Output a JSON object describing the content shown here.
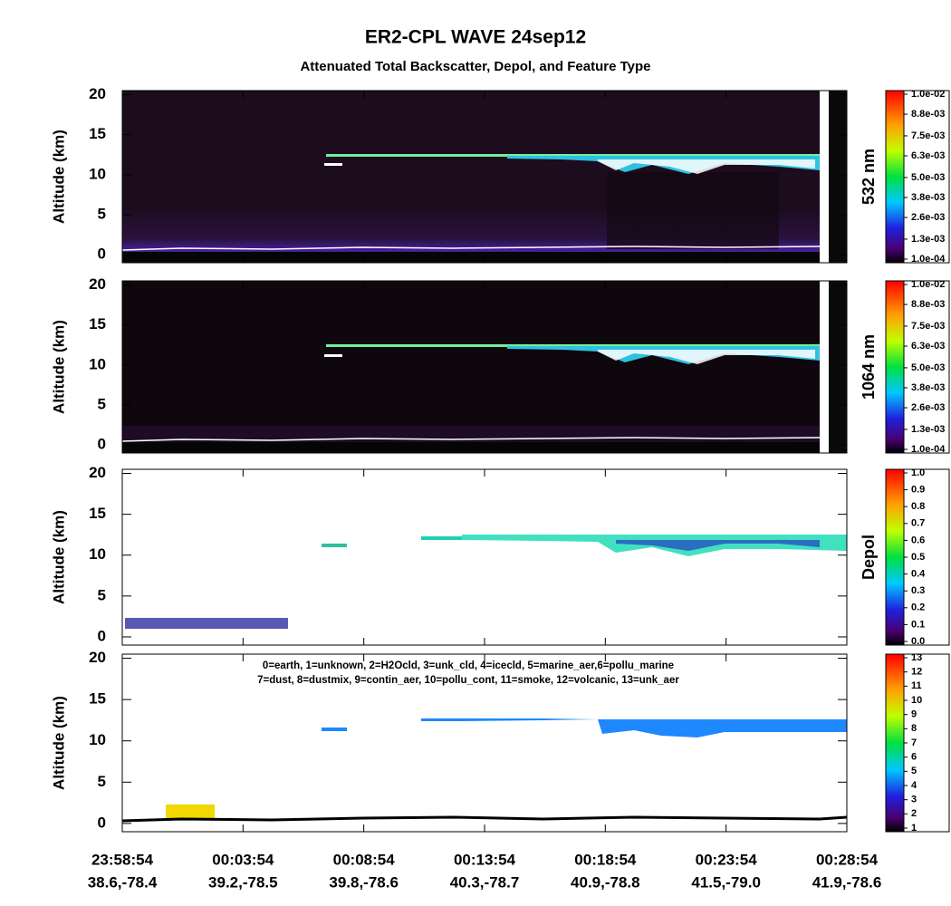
{
  "title": "ER2-CPL WAVE 24sep12",
  "subtitle": "Attenuated Total Backscatter, Depol, and Feature Type",
  "x_ticks": [
    {
      "time": "23:58:54",
      "location": "38.6,-78.4"
    },
    {
      "time": "00:03:54",
      "location": "39.2,-78.5"
    },
    {
      "time": "00:08:54",
      "location": "39.8,-78.6"
    },
    {
      "time": "00:13:54",
      "location": "40.3,-78.7"
    },
    {
      "time": "00:18:54",
      "location": "40.9,-78.8"
    },
    {
      "time": "00:23:54",
      "location": "41.5,-79.0"
    },
    {
      "time": "00:28:54",
      "location": "41.9,-78.6"
    }
  ],
  "chart_data": [
    {
      "type": "heatmap",
      "y_label": "Altitude (km)",
      "ylim": [
        -1,
        20.5
      ],
      "yticks": [
        0,
        5,
        10,
        15,
        20
      ],
      "colorbar": {
        "label": "532 nm",
        "clim": [
          0.0001,
          0.01
        ],
        "ticks": [
          {
            "value": 0.0001,
            "label": "1.0e-04"
          },
          {
            "value": 0.0013,
            "label": "1.3e-03"
          },
          {
            "value": 0.0026,
            "label": "2.6e-03"
          },
          {
            "value": 0.0038,
            "label": "3.8e-03"
          },
          {
            "value": 0.005,
            "label": "5.0e-03"
          },
          {
            "value": 0.0063,
            "label": "6.3e-03"
          },
          {
            "value": 0.0075,
            "label": "7.5e-03"
          },
          {
            "value": 0.0088,
            "label": "8.8e-03"
          },
          {
            "value": 0.01,
            "label": "1.0e-02"
          }
        ]
      }
    },
    {
      "type": "heatmap",
      "y_label": "Altitude (km)",
      "ylim": [
        -1,
        20.5
      ],
      "yticks": [
        0,
        5,
        10,
        15,
        20
      ],
      "colorbar": {
        "label": "1064 nm",
        "clim": [
          0.0001,
          0.01
        ],
        "ticks": [
          {
            "value": 0.0001,
            "label": "1.0e-04"
          },
          {
            "value": 0.0013,
            "label": "1.3e-03"
          },
          {
            "value": 0.0026,
            "label": "2.6e-03"
          },
          {
            "value": 0.0038,
            "label": "3.8e-03"
          },
          {
            "value": 0.005,
            "label": "5.0e-03"
          },
          {
            "value": 0.0063,
            "label": "6.3e-03"
          },
          {
            "value": 0.0075,
            "label": "7.5e-03"
          },
          {
            "value": 0.0088,
            "label": "8.8e-03"
          },
          {
            "value": 0.01,
            "label": "1.0e-02"
          }
        ]
      }
    },
    {
      "type": "heatmap",
      "y_label": "Altitude (km)",
      "ylim": [
        -1,
        20.5
      ],
      "yticks": [
        0,
        5,
        10,
        15,
        20
      ],
      "colorbar": {
        "label": "Depol",
        "clim": [
          0,
          1
        ],
        "ticks": [
          {
            "value": 0,
            "label": "0.0"
          },
          0.1,
          0.2,
          0.3,
          0.4,
          0.5,
          0.6,
          0.7,
          0.8,
          0.9,
          {
            "value": 1,
            "label": "1.0"
          }
        ]
      }
    },
    {
      "type": "heatmap",
      "y_label": "Altitude (km)",
      "ylim": [
        -1,
        20.5
      ],
      "yticks": [
        0,
        5,
        10,
        15,
        20
      ],
      "annotations": [
        "0=earth, 1=unknown, 2=H2Ocld, 3=unk_cld, 4=icecld, 5=marine_aer,6=pollu_marine",
        "7=dust, 8=dustmix, 9=contin_aer, 10=pollu_cont, 11=smoke, 12=volcanic, 13=unk_aer"
      ],
      "colorbar": {
        "clim": [
          1,
          13
        ],
        "ticks": [
          1,
          2,
          3,
          4,
          5,
          6,
          7,
          8,
          9,
          10,
          11,
          12,
          13
        ]
      }
    }
  ]
}
